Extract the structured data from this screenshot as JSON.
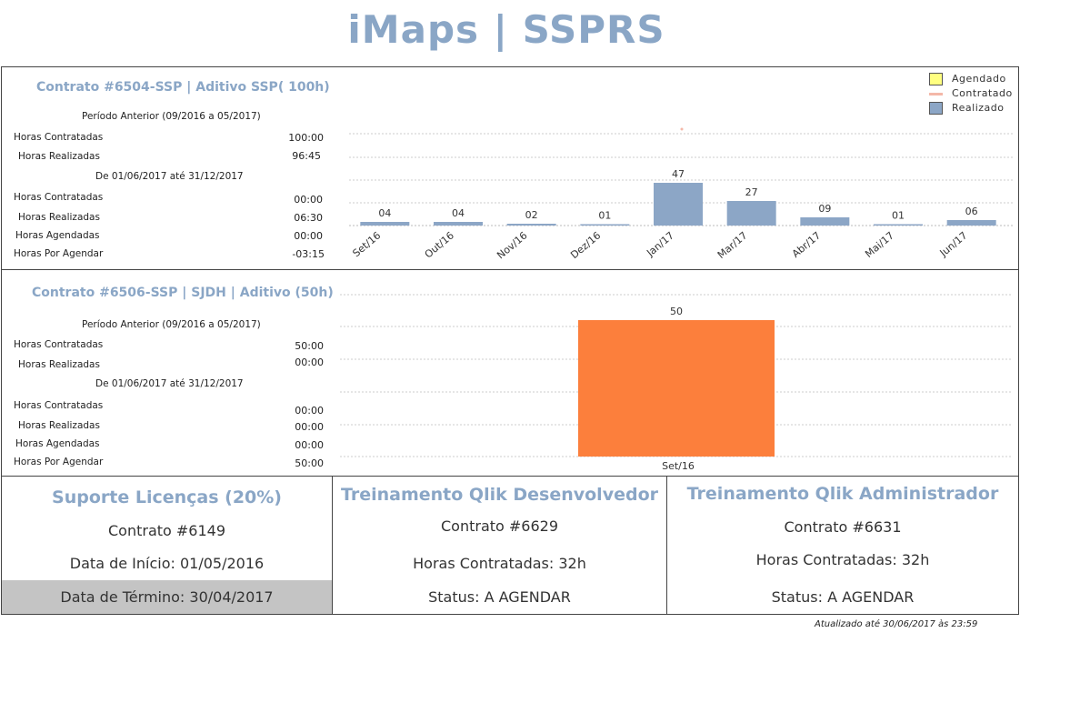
{
  "app_title": "iMaps | SSPRS",
  "contract1": {
    "title": "Contrato #6504-SSP | Aditivo SSP( 100h)",
    "period_prev": "Período Anterior (09/2016 a 05/2017)",
    "rows_prev": [
      {
        "label": "Horas Contratadas",
        "value": "100:00"
      },
      {
        "label": "Horas Realizadas",
        "value": "96:45"
      }
    ],
    "period_cur": "De 01/06/2017 até 31/12/2017",
    "rows_cur": [
      {
        "label": "Horas Contratadas",
        "value": "00:00"
      },
      {
        "label": "Horas Realizadas",
        "value": "06:30"
      },
      {
        "label": "Horas Agendadas",
        "value": "00:00"
      },
      {
        "label": "Horas Por Agendar",
        "value": "-03:15"
      }
    ]
  },
  "legend": {
    "items": [
      {
        "label": "Agendado",
        "color": "#ffff80"
      },
      {
        "label": "Contratado",
        "color": "#f4b8a8"
      },
      {
        "label": "Realizado",
        "color": "#8ca6c6"
      }
    ]
  },
  "contract2": {
    "title": "Contrato #6506-SSP | SJDH | Aditivo (50h)",
    "period_prev": "Período Anterior (09/2016 a 05/2017)",
    "rows_prev": [
      {
        "label": "Horas Contratadas",
        "value": "50:00"
      },
      {
        "label": "Horas Realizadas",
        "value": "00:00"
      }
    ],
    "period_cur": "De 01/06/2017 até 31/12/2017",
    "rows_cur": [
      {
        "label": "Horas Contratadas",
        "value": "00:00"
      },
      {
        "label": "Horas Realizadas",
        "value": "00:00"
      },
      {
        "label": "Horas Agendadas",
        "value": "00:00"
      },
      {
        "label": "Horas Por Agendar",
        "value": "50:00"
      }
    ]
  },
  "chart_data": [
    {
      "type": "bar",
      "categories": [
        "Set/16",
        "Out/16",
        "Nov/16",
        "Dez/16",
        "Jan/17",
        "Mar/17",
        "Abr/17",
        "Mai/17",
        "Jun/17"
      ],
      "series": [
        {
          "name": "Realizado",
          "values": [
            4,
            4,
            2,
            1,
            47,
            27,
            9,
            1,
            6
          ],
          "labels": [
            "04",
            "04",
            "02",
            "01",
            "47",
            "27",
            "09",
            "01",
            "06"
          ],
          "color": "#8ca6c6"
        }
      ],
      "ylim": [
        0,
        100
      ],
      "grid": true,
      "legend": "top-right"
    },
    {
      "type": "bar",
      "categories": [
        "Set/16"
      ],
      "series": [
        {
          "name": "Contratado",
          "values": [
            50
          ],
          "labels": [
            "50"
          ],
          "color": "#fc7f3c"
        }
      ],
      "ylim": [
        0,
        60
      ],
      "grid": true
    }
  ],
  "cards": [
    {
      "title": "Suporte Licenças (20%)",
      "lines": [
        "Contrato #6149",
        "Data de Início: 01/05/2016",
        "Data de Término: 30/04/2017"
      ]
    },
    {
      "title": "Treinamento Qlik Desenvolvedor",
      "lines": [
        "Contrato #6629",
        "Horas Contratadas: 32h",
        "Status: A  AGENDAR"
      ]
    },
    {
      "title": "Treinamento Qlik Administrador",
      "lines": [
        "Contrato #6631",
        "Horas Contratadas: 32h",
        "Status: A  AGENDAR"
      ]
    }
  ],
  "updated": "Atualizado até 30/06/2017 às 23:59"
}
